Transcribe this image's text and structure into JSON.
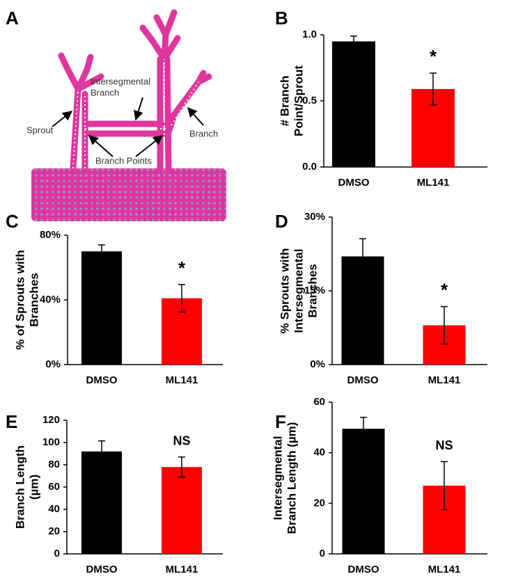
{
  "diagram": {
    "panel": "A",
    "labels": {
      "intersegmental": [
        "Intersegmental",
        "Branch"
      ],
      "sprout": "Sprout",
      "branch": "Branch",
      "branch_points": "Branch Points"
    }
  },
  "chart_data": [
    {
      "type": "bar",
      "panel": "B",
      "ylabel": [
        "# Branch",
        "Point/Sprout"
      ],
      "categories": [
        "DMSO",
        "ML141"
      ],
      "values": [
        0.95,
        0.59
      ],
      "errors": [
        0.04,
        0.12
      ],
      "colors": [
        "#000000",
        "#ff0000"
      ],
      "annotations": [
        null,
        "*"
      ],
      "ylim": [
        0,
        1.0
      ],
      "yticks": [
        {
          "value": 0,
          "label": "0.0"
        },
        {
          "value": 0.5,
          "label": "0.5"
        },
        {
          "value": 1.0,
          "label": "1.0"
        }
      ]
    },
    {
      "type": "bar",
      "panel": "C",
      "ylabel": [
        "% of Sprouts with",
        "Branches"
      ],
      "categories": [
        "DMSO",
        "ML141"
      ],
      "values": [
        70,
        41
      ],
      "errors": [
        4,
        8.5
      ],
      "colors": [
        "#000000",
        "#ff0000"
      ],
      "annotations": [
        null,
        "*"
      ],
      "ylim": [
        0,
        80
      ],
      "yticks": [
        {
          "value": 0,
          "label": "0%"
        },
        {
          "value": 40,
          "label": "40%"
        },
        {
          "value": 80,
          "label": "80%"
        }
      ]
    },
    {
      "type": "bar",
      "panel": "D",
      "ylabel": [
        "% Sprouts with",
        "Intersegmental",
        "Branches"
      ],
      "categories": [
        "DMSO",
        "ML141"
      ],
      "values": [
        22,
        8
      ],
      "errors": [
        3.6,
        3.8
      ],
      "colors": [
        "#000000",
        "#ff0000"
      ],
      "annotations": [
        null,
        "*"
      ],
      "ylim": [
        0,
        30
      ],
      "yticks": [
        {
          "value": 0,
          "label": "0%"
        },
        {
          "value": 15,
          "label": "15%"
        },
        {
          "value": 30,
          "label": "30%"
        }
      ]
    },
    {
      "type": "bar",
      "panel": "E",
      "ylabel": [
        "Branch Length",
        "(µm)"
      ],
      "categories": [
        "DMSO",
        "ML141"
      ],
      "values": [
        92,
        78
      ],
      "errors": [
        9.5,
        9
      ],
      "colors": [
        "#000000",
        "#ff0000"
      ],
      "annotations": [
        null,
        "NS"
      ],
      "ylim": [
        0,
        120
      ],
      "yticks": [
        0,
        20,
        40,
        60,
        80,
        100,
        120
      ]
    },
    {
      "type": "bar",
      "panel": "F",
      "ylabel": [
        "Intersegmental",
        "Branch Length (µm)"
      ],
      "categories": [
        "DMSO",
        "ML141"
      ],
      "values": [
        49.5,
        27
      ],
      "errors": [
        4.5,
        9.5
      ],
      "colors": [
        "#000000",
        "#ff0000"
      ],
      "annotations": [
        null,
        "NS"
      ],
      "ylim": [
        0,
        60
      ],
      "yticks": [
        0,
        20,
        40,
        60
      ]
    }
  ]
}
